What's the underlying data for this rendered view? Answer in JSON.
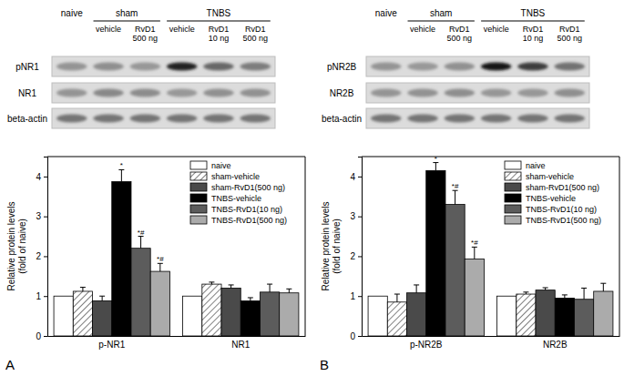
{
  "chart_data": [
    {
      "type": "bar",
      "ylabel": [
        "Relative protein levels",
        "(fold of naive)"
      ],
      "categories": [
        "p-NR1",
        "NR1"
      ],
      "ylim": [
        0,
        4.5
      ],
      "yticks": [
        0,
        1,
        2,
        3,
        4
      ],
      "grid": false,
      "legend": "upper right",
      "series": [
        {
          "name": "naive",
          "color": "#ffffff",
          "values": [
            1.0,
            1.0
          ],
          "errors": [
            0,
            0
          ],
          "annotations": [
            null,
            null
          ]
        },
        {
          "name": "sham-vehicle",
          "color": "#ffffff",
          "marker": "hatch",
          "values": [
            1.12,
            1.3
          ],
          "errors": [
            0.1,
            0.05
          ],
          "annotations": [
            null,
            null
          ]
        },
        {
          "name": "sham-RvD1(500 ng)",
          "color": "#4a4a4a",
          "values": [
            0.88,
            1.2
          ],
          "errors": [
            0.12,
            0.08
          ],
          "annotations": [
            null,
            null
          ]
        },
        {
          "name": "TNBS-vehicle",
          "color": "#000000",
          "values": [
            3.87,
            0.88
          ],
          "errors": [
            0.3,
            0.08
          ],
          "annotations": [
            "*",
            null
          ]
        },
        {
          "name": "TNBS-RvD1(10 ng)",
          "color": "#5c5c5c",
          "values": [
            2.2,
            1.1
          ],
          "errors": [
            0.3,
            0.2
          ],
          "annotations": [
            "*#",
            null
          ]
        },
        {
          "name": "TNBS-RvD1(500 ng)",
          "color": "#ababab",
          "values": [
            1.62,
            1.08
          ],
          "errors": [
            0.2,
            0.1
          ],
          "annotations": [
            "*#",
            null
          ]
        }
      ]
    },
    {
      "type": "bar",
      "ylabel": [
        "Relative protein levels",
        "(fold of naive)"
      ],
      "categories": [
        "p-NR2B",
        "NR2B"
      ],
      "ylim": [
        0,
        4.5
      ],
      "yticks": [
        0,
        1,
        2,
        3,
        4
      ],
      "grid": false,
      "legend": "upper right",
      "series": [
        {
          "name": "naive",
          "color": "#ffffff",
          "values": [
            1.0,
            1.0
          ],
          "errors": [
            0,
            0
          ],
          "annotations": [
            null,
            null
          ]
        },
        {
          "name": "sham-vehicle",
          "color": "#ffffff",
          "marker": "hatch",
          "values": [
            0.85,
            1.05
          ],
          "errors": [
            0.2,
            0.05
          ],
          "annotations": [
            null,
            null
          ]
        },
        {
          "name": "sham-RvD1(500 ng)",
          "color": "#4a4a4a",
          "values": [
            1.08,
            1.15
          ],
          "errors": [
            0.2,
            0.06
          ],
          "annotations": [
            null,
            null
          ]
        },
        {
          "name": "TNBS-vehicle",
          "color": "#000000",
          "values": [
            4.15,
            0.95
          ],
          "errors": [
            0.2,
            0.08
          ],
          "annotations": [
            "*",
            null
          ]
        },
        {
          "name": "TNBS-RvD1(10 ng)",
          "color": "#5c5c5c",
          "values": [
            3.3,
            0.92
          ],
          "errors": [
            0.35,
            0.28
          ],
          "annotations": [
            "*#",
            null
          ]
        },
        {
          "name": "TNBS-RvD1(500 ng)",
          "color": "#ababab",
          "values": [
            1.93,
            1.12
          ],
          "errors": [
            0.3,
            0.2
          ],
          "annotations": [
            "*#",
            null
          ]
        }
      ]
    }
  ],
  "panel_labels": [
    "A",
    "B"
  ],
  "blots": [
    {
      "groups": [
        {
          "label": "naive",
          "lanes": [
            []
          ]
        },
        {
          "label": "sham",
          "lanes": [
            [
              "vehicle"
            ],
            [
              "RvD1",
              "500 ng"
            ]
          ]
        },
        {
          "label": "TNBS",
          "lanes": [
            [
              "vehicle"
            ],
            [
              "RvD1",
              "10 ng"
            ],
            [
              "RvD1",
              "500 ng"
            ]
          ]
        }
      ],
      "rows": [
        "pNR1",
        "NR1",
        "beta-actin"
      ]
    },
    {
      "groups": [
        {
          "label": "naive",
          "lanes": [
            []
          ]
        },
        {
          "label": "sham",
          "lanes": [
            [
              "vehicle"
            ],
            [
              "RvD1",
              "500 ng"
            ]
          ]
        },
        {
          "label": "TNBS",
          "lanes": [
            [
              "vehicle"
            ],
            [
              "RvD1",
              "10 ng"
            ],
            [
              "RvD1",
              "500 ng"
            ]
          ]
        }
      ],
      "rows": [
        "pNR2B",
        "NR2B",
        "beta-actin"
      ]
    }
  ]
}
